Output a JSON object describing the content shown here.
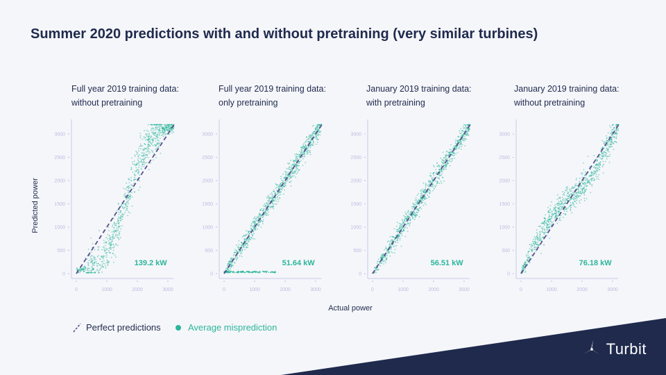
{
  "title": "Summer 2020 predictions with and without pretraining (very similar turbines)",
  "colors": {
    "navy": "#1f2a4d",
    "teal": "#2bb69a",
    "dash": "#5a4f8c",
    "axis": "#c8cbe8",
    "tick": "#b9bcdf"
  },
  "ylabel": "Predicted power",
  "xlabel": "Actual power",
  "legend": {
    "perfect": "Perfect predictions",
    "average": "Average misprediction"
  },
  "brand": {
    "name": "Turbit"
  },
  "chart_data": [
    {
      "type": "scatter",
      "subtitle_line1": "Full year 2019 training data:",
      "subtitle_line2": "without pretraining",
      "mae_label": "139.2 kW",
      "shape": "s-curve",
      "xlim": [
        0,
        3200
      ],
      "ylim": [
        0,
        3200
      ],
      "xticks": [
        "0",
        "1000",
        "2000",
        "3000"
      ],
      "yticks": [
        "0",
        "500",
        "1000",
        "1500",
        "2000",
        "2500",
        "3000"
      ]
    },
    {
      "type": "scatter",
      "subtitle_line1": "Full year 2019 training data:",
      "subtitle_line2": "only pretraining",
      "mae_label": "51.64 kW",
      "shape": "linear-with-zero-outliers",
      "xlim": [
        0,
        3200
      ],
      "ylim": [
        0,
        3200
      ],
      "xticks": [
        "0",
        "1000",
        "2000",
        "3000"
      ],
      "yticks": [
        "0",
        "500",
        "1000",
        "1500",
        "2000",
        "2500",
        "3000"
      ]
    },
    {
      "type": "scatter",
      "subtitle_line1": "January 2019 training data:",
      "subtitle_line2": "with pretraining",
      "mae_label": "56.51 kW",
      "shape": "linear",
      "xlim": [
        0,
        3200
      ],
      "ylim": [
        0,
        3200
      ],
      "xticks": [
        "0",
        "1000",
        "2000",
        "3000"
      ],
      "yticks": [
        "0",
        "500",
        "1000",
        "1500",
        "2000",
        "2500",
        "3000"
      ]
    },
    {
      "type": "scatter",
      "subtitle_line1": "January 2019 training data:",
      "subtitle_line2": "without pretraining",
      "mae_label": "76.18 kW",
      "shape": "wavy",
      "xlim": [
        0,
        3200
      ],
      "ylim": [
        0,
        3200
      ],
      "xticks": [
        "0",
        "1000",
        "2000",
        "3000"
      ],
      "yticks": [
        "0",
        "500",
        "1000",
        "1500",
        "2000",
        "2500",
        "3000"
      ]
    }
  ]
}
